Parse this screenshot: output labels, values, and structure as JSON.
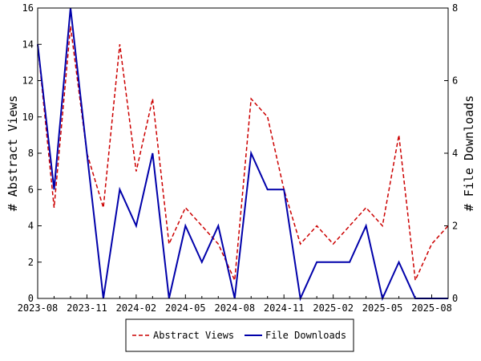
{
  "chart_data": {
    "type": "line",
    "x": [
      "2023-08",
      "2023-09",
      "2023-10",
      "2023-11",
      "2023-12",
      "2024-01",
      "2024-02",
      "2024-03",
      "2024-04",
      "2024-05",
      "2024-06",
      "2024-07",
      "2024-08",
      "2024-09",
      "2024-10",
      "2024-11",
      "2024-12",
      "2025-01",
      "2025-02",
      "2025-03",
      "2025-04",
      "2025-05",
      "2025-06",
      "2025-07",
      "2025-08",
      "2025-09"
    ],
    "x_ticks": [
      "2023-08",
      "2023-11",
      "2024-02",
      "2024-05",
      "2024-08",
      "2024-11",
      "2025-02",
      "2025-05",
      "2025-08"
    ],
    "y_left": {
      "label": "# Abstract Views",
      "range": [
        0,
        16
      ],
      "ticks": [
        "0",
        "2",
        "4",
        "6",
        "8",
        "10",
        "12",
        "14",
        "16"
      ]
    },
    "y_right": {
      "label": "# File Downloads",
      "range": [
        0,
        8
      ],
      "ticks": [
        "0",
        "2",
        "4",
        "6",
        "8"
      ]
    },
    "series": [
      {
        "name": "Abstract Views",
        "axis": "left",
        "color": "#cc0000",
        "style": "dashed",
        "values": [
          14,
          5,
          15,
          8,
          5,
          14,
          7,
          11,
          3,
          5,
          4,
          3,
          1,
          11,
          10,
          6,
          3,
          4,
          3,
          4,
          5,
          4,
          9,
          1,
          3,
          4
        ]
      },
      {
        "name": "File Downloads",
        "axis": "right",
        "color": "#0000aa",
        "style": "solid",
        "values": [
          7,
          3,
          8,
          4,
          0,
          3,
          2,
          4,
          0,
          2,
          1,
          2,
          0,
          4,
          3,
          3,
          0,
          1,
          1,
          1,
          2,
          0,
          1,
          0,
          0,
          0
        ]
      }
    ],
    "grid": false,
    "legend_position": "bottom"
  }
}
